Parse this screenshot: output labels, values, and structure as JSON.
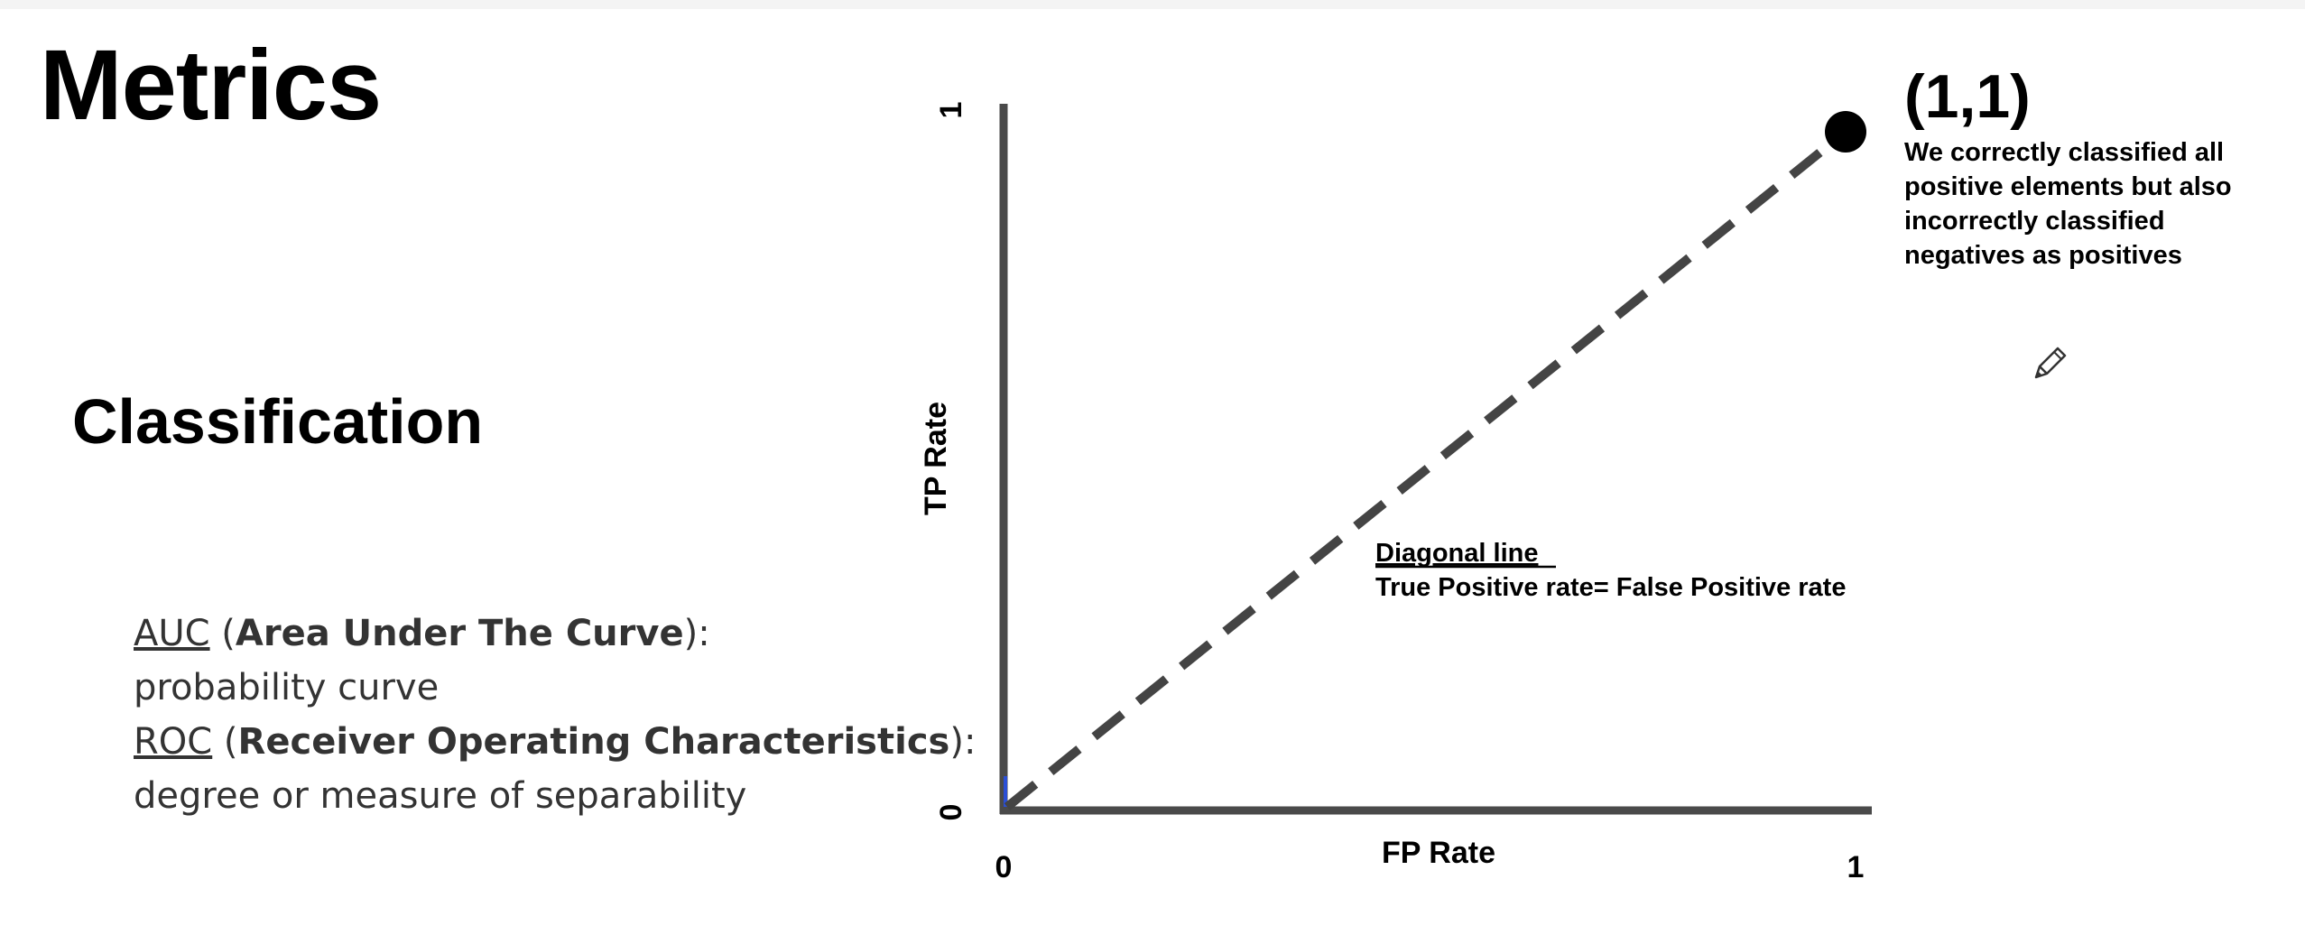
{
  "slide": {
    "title": "Metrics",
    "section": "Classification"
  },
  "definitions": [
    {
      "abbr": "AUC",
      "full": "Area Under The Curve",
      "desc": "probability curve"
    },
    {
      "abbr": "ROC",
      "full": "Receiver Operating Characteristics",
      "desc": "degree or measure of separability"
    }
  ],
  "chart_data": {
    "type": "line",
    "xlabel": "FP Rate",
    "ylabel": "TP Rate",
    "xlim": [
      0,
      1
    ],
    "ylim": [
      0,
      1
    ],
    "x_ticks": [
      "0",
      "1"
    ],
    "y_ticks": [
      "0",
      "1"
    ],
    "grid": false,
    "series": [
      {
        "name": "Diagonal line",
        "style": "dashed",
        "color": "#444444",
        "x": [
          0,
          1
        ],
        "y": [
          0,
          1
        ]
      }
    ],
    "points": [
      {
        "x": 1,
        "y": 1,
        "label": "(1,1)",
        "color": "#000000"
      }
    ],
    "annotations": {
      "point": {
        "title": "(1,1)",
        "lines": [
          "We correctly classified all",
          "positive elements but also",
          "incorrectly classified",
          "negatives as positives"
        ]
      },
      "diagonal": {
        "title": "Diagonal line",
        "subtitle": "True Positive rate= False Positive rate"
      }
    }
  },
  "icons": {
    "cursor": "pencil-cursor-icon"
  },
  "colors": {
    "axis": "#4a4a4a",
    "dash": "#444444",
    "origin_mark": "#2b4fd6"
  }
}
